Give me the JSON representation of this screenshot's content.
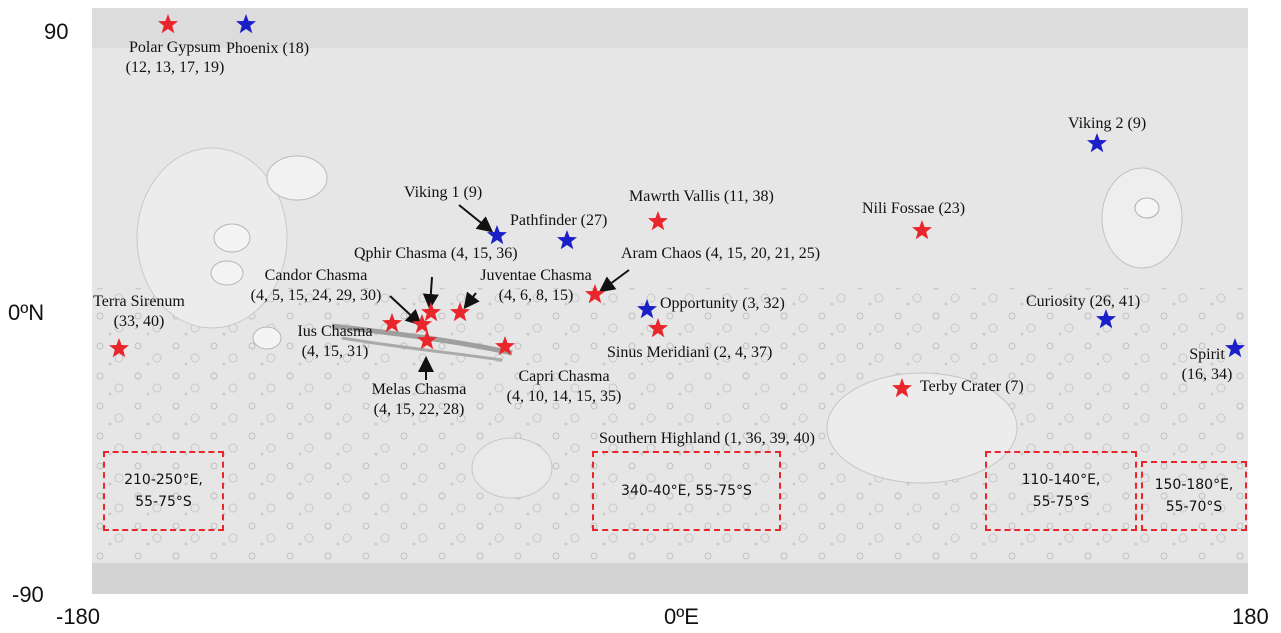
{
  "axes": {
    "x_ticks": [
      "-180",
      "0ºE",
      "180"
    ],
    "y_ticks": [
      "90",
      "0ºN",
      "-90"
    ]
  },
  "colors": {
    "landing_site_star": "#1a1fc8",
    "study_site_star": "#e8262b",
    "region_box": "#e8262b"
  },
  "landing_sites": [
    {
      "id": "phoenix",
      "text": "Phoenix (18)"
    },
    {
      "id": "viking1",
      "text": "Viking 1 (9)"
    },
    {
      "id": "pathfinder",
      "text": "Pathfinder (27)"
    },
    {
      "id": "opportunity",
      "text": "Opportunity (3, 32)"
    },
    {
      "id": "viking2",
      "text": "Viking 2 (9)"
    },
    {
      "id": "curiosity",
      "text": "Curiosity (26, 41)"
    },
    {
      "id": "spirit",
      "text": "Spirit",
      "text2": "(16, 34)"
    }
  ],
  "study_sites": [
    {
      "id": "polar-gypsum",
      "text": "Polar Gypsum",
      "text2": "(12, 13, 17, 19)"
    },
    {
      "id": "mawrth-vallis",
      "text": "Mawrth Vallis (11, 38)"
    },
    {
      "id": "nili-fossae",
      "text": "Nili Fossae (23)"
    },
    {
      "id": "ophir-chasma",
      "text": "Qphir Chasma (4, 15, 36)"
    },
    {
      "id": "aram-chaos",
      "text": "Aram Chaos (4, 15, 20, 21, 25)"
    },
    {
      "id": "candor-chasma",
      "text": "Candor Chasma",
      "text2": "(4, 5, 15, 24, 29, 30)"
    },
    {
      "id": "juventae-chasma",
      "text": "Juventae Chasma",
      "text2": "(4, 6, 8, 15)"
    },
    {
      "id": "terra-sirenum",
      "text": "Terra Sirenum",
      "text2": "(33, 40)"
    },
    {
      "id": "ius-chasma",
      "text": "Ius Chasma",
      "text2": "(4, 15, 31)"
    },
    {
      "id": "melas-chasma",
      "text": "Melas Chasma",
      "text2": "(4, 15, 22, 28)"
    },
    {
      "id": "capri-chasma",
      "text": "Capri Chasma",
      "text2": "(4, 10, 14, 15, 35)"
    },
    {
      "id": "sinus-meridiani",
      "text": "Sinus Meridiani (2, 4, 37)"
    },
    {
      "id": "terby-crater",
      "text": "Terby Crater (7)"
    }
  ],
  "southern_highland": "Southern Highland (1, 36, 39, 40)",
  "regions": [
    {
      "line1": "210-250°E,",
      "line2": "55-75°S"
    },
    {
      "line1": "340-40°E, 55-75°S",
      "line2": ""
    },
    {
      "line1": "110-140°E,",
      "line2": "55-75°S"
    },
    {
      "line1": "150-180°E,",
      "line2": "55-70°S"
    }
  ]
}
